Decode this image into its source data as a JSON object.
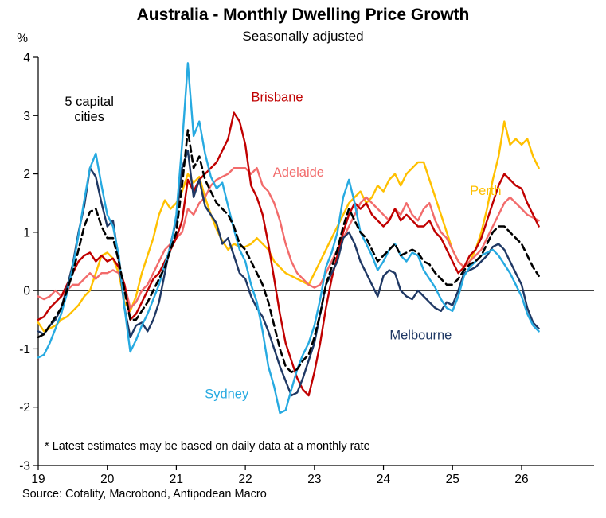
{
  "header": {
    "title": "Australia - Monthly Dwelling Price Growth",
    "subtitle": "Seasonally adjusted"
  },
  "footer": {
    "source": "Source: Cotality, Macrobond, Antipodean Macro"
  },
  "chart_data": {
    "type": "line",
    "title": "Australia - Monthly Dwelling Price Growth",
    "subtitle": "Seasonally adjusted",
    "unit_label": "%",
    "footnote": "* Latest estimates may be based on daily data at a monthly rate",
    "x_start_year": 2019,
    "x_interval": "monthly",
    "xlim": [
      2019,
      2027.05
    ],
    "ylim": [
      -3,
      4
    ],
    "yticks": [
      4,
      3,
      2,
      1,
      0,
      -1,
      -2,
      -3
    ],
    "xticks": [
      {
        "value": 2019,
        "label": "19"
      },
      {
        "value": 2020,
        "label": "20"
      },
      {
        "value": 2021,
        "label": "21"
      },
      {
        "value": 2022,
        "label": "22"
      },
      {
        "value": 2023,
        "label": "23"
      },
      {
        "value": 2024,
        "label": "24"
      },
      {
        "value": 2025,
        "label": "25"
      },
      {
        "value": 2026,
        "label": "26"
      }
    ],
    "grid": false,
    "zero_line": true,
    "legend_position": "inline-annotations",
    "series": [
      {
        "id": "perth",
        "name": "Perth",
        "color": "#FFC000",
        "dash": false,
        "width": 2.4,
        "values": [
          -0.55,
          -0.7,
          -0.65,
          -0.6,
          -0.5,
          -0.45,
          -0.35,
          -0.25,
          -0.1,
          0.0,
          0.3,
          0.6,
          0.65,
          0.55,
          0.3,
          -0.2,
          -0.35,
          -0.1,
          0.3,
          0.6,
          0.9,
          1.3,
          1.55,
          1.4,
          1.5,
          1.7,
          2.0,
          1.85,
          1.95,
          1.6,
          1.3,
          1.05,
          0.85,
          0.7,
          0.8,
          0.75,
          0.75,
          0.8,
          0.9,
          0.8,
          0.7,
          0.5,
          0.4,
          0.3,
          0.25,
          0.2,
          0.15,
          0.1,
          0.3,
          0.5,
          0.7,
          0.9,
          1.1,
          1.3,
          1.5,
          1.6,
          1.7,
          1.5,
          1.6,
          1.8,
          1.7,
          1.9,
          2.0,
          1.8,
          2.0,
          2.1,
          2.2,
          2.2,
          1.9,
          1.6,
          1.3,
          1.0,
          0.7,
          0.5,
          0.4,
          0.5,
          0.7,
          1.0,
          1.4,
          1.9,
          2.3,
          2.9,
          2.5,
          2.6,
          2.5,
          2.6,
          2.3,
          2.1
        ]
      },
      {
        "id": "adelaide",
        "name": "Adelaide",
        "color": "#F26B6B",
        "dash": false,
        "width": 2.4,
        "values": [
          -0.1,
          -0.15,
          -0.1,
          0.0,
          -0.1,
          0.0,
          0.1,
          0.1,
          0.2,
          0.3,
          0.2,
          0.3,
          0.3,
          0.35,
          0.3,
          0.1,
          -0.3,
          -0.2,
          0.0,
          0.1,
          0.3,
          0.5,
          0.7,
          0.8,
          0.9,
          1.0,
          1.4,
          1.3,
          1.5,
          1.6,
          1.8,
          1.9,
          1.95,
          2.0,
          2.1,
          2.1,
          2.1,
          2.0,
          2.1,
          1.8,
          1.7,
          1.5,
          1.2,
          0.8,
          0.5,
          0.3,
          0.2,
          0.1,
          0.05,
          0.1,
          0.3,
          0.5,
          0.7,
          0.9,
          1.1,
          1.3,
          1.5,
          1.6,
          1.5,
          1.4,
          1.3,
          1.2,
          1.4,
          1.3,
          1.5,
          1.3,
          1.2,
          1.4,
          1.5,
          1.2,
          1.0,
          0.9,
          0.7,
          0.5,
          0.4,
          0.5,
          0.6,
          0.7,
          0.9,
          1.1,
          1.3,
          1.5,
          1.6,
          1.5,
          1.4,
          1.3,
          1.25,
          1.2
        ]
      },
      {
        "id": "brisbane",
        "name": "Brisbane",
        "color": "#C00000",
        "dash": false,
        "width": 2.4,
        "values": [
          -0.5,
          -0.45,
          -0.3,
          -0.2,
          -0.1,
          0.1,
          0.3,
          0.5,
          0.6,
          0.65,
          0.5,
          0.6,
          0.5,
          0.55,
          0.4,
          0.1,
          -0.5,
          -0.4,
          -0.2,
          0.0,
          0.2,
          0.3,
          0.5,
          0.7,
          0.9,
          1.2,
          1.9,
          1.7,
          1.9,
          2.0,
          2.1,
          2.2,
          2.4,
          2.6,
          3.05,
          2.9,
          2.5,
          1.8,
          1.6,
          1.3,
          0.8,
          0.2,
          -0.4,
          -0.9,
          -1.2,
          -1.5,
          -1.7,
          -1.8,
          -1.4,
          -0.9,
          -0.3,
          0.2,
          0.6,
          1.0,
          1.3,
          1.5,
          1.4,
          1.5,
          1.3,
          1.2,
          1.1,
          1.2,
          1.4,
          1.2,
          1.3,
          1.2,
          1.1,
          1.1,
          1.2,
          1.0,
          0.9,
          0.7,
          0.5,
          0.3,
          0.4,
          0.6,
          0.7,
          0.9,
          1.2,
          1.5,
          1.8,
          2.0,
          1.9,
          1.8,
          1.75,
          1.5,
          1.3,
          1.1
        ]
      },
      {
        "id": "melbourne",
        "name": "Melbourne",
        "color": "#1F3864",
        "dash": false,
        "width": 2.4,
        "values": [
          -0.7,
          -0.75,
          -0.6,
          -0.5,
          -0.3,
          0.05,
          0.45,
          1.0,
          1.45,
          2.1,
          1.95,
          1.5,
          1.1,
          1.2,
          0.5,
          -0.3,
          -0.8,
          -0.6,
          -0.55,
          -0.7,
          -0.5,
          -0.2,
          0.3,
          0.8,
          1.2,
          2.1,
          2.4,
          1.6,
          1.9,
          1.45,
          1.3,
          1.15,
          0.8,
          0.9,
          0.6,
          0.3,
          0.2,
          -0.1,
          -0.3,
          -0.45,
          -0.7,
          -1.0,
          -1.3,
          -1.55,
          -1.8,
          -1.75,
          -1.5,
          -1.2,
          -0.9,
          -0.4,
          0.1,
          0.3,
          0.5,
          0.9,
          1.0,
          0.8,
          0.5,
          0.3,
          0.1,
          -0.1,
          0.25,
          0.35,
          0.3,
          0.0,
          -0.1,
          -0.15,
          0.0,
          -0.1,
          -0.2,
          -0.3,
          -0.35,
          -0.2,
          -0.25,
          0.0,
          0.3,
          0.35,
          0.4,
          0.5,
          0.6,
          0.75,
          0.8,
          0.7,
          0.5,
          0.3,
          0.1,
          -0.3,
          -0.55,
          -0.65
        ]
      },
      {
        "id": "sydney",
        "name": "Sydney",
        "color": "#27AAE1",
        "dash": false,
        "width": 2.4,
        "values": [
          -1.15,
          -1.1,
          -0.9,
          -0.65,
          -0.4,
          -0.05,
          0.4,
          0.95,
          1.55,
          2.1,
          2.35,
          1.8,
          1.3,
          1.1,
          0.6,
          -0.3,
          -1.05,
          -0.85,
          -0.6,
          -0.4,
          -0.15,
          0.1,
          0.45,
          0.75,
          1.3,
          2.5,
          3.9,
          2.65,
          2.9,
          2.35,
          1.95,
          1.75,
          1.85,
          1.45,
          1.05,
          0.7,
          0.5,
          0.1,
          -0.2,
          -0.7,
          -1.3,
          -1.65,
          -2.1,
          -2.05,
          -1.7,
          -1.35,
          -1.1,
          -0.9,
          -0.6,
          -0.15,
          0.4,
          0.65,
          1.0,
          1.6,
          1.9,
          1.5,
          1.0,
          0.8,
          0.6,
          0.35,
          0.5,
          0.7,
          0.8,
          0.6,
          0.5,
          0.65,
          0.6,
          0.35,
          0.2,
          0.05,
          -0.15,
          -0.3,
          -0.35,
          -0.1,
          0.25,
          0.4,
          0.5,
          0.6,
          0.65,
          0.7,
          0.6,
          0.45,
          0.3,
          0.1,
          -0.1,
          -0.4,
          -0.6,
          -0.7
        ]
      },
      {
        "id": "five-capital-cities",
        "name": "5 capital cities",
        "color": "#000000",
        "dash": true,
        "width": 2.6,
        "values": [
          -0.8,
          -0.75,
          -0.6,
          -0.45,
          -0.3,
          0.0,
          0.3,
          0.7,
          1.1,
          1.35,
          1.4,
          1.1,
          0.9,
          0.9,
          0.5,
          0.0,
          -0.5,
          -0.5,
          -0.35,
          -0.2,
          0.0,
          0.2,
          0.4,
          0.7,
          1.0,
          1.8,
          2.75,
          2.1,
          2.3,
          1.9,
          1.7,
          1.5,
          1.4,
          1.3,
          1.1,
          0.8,
          0.7,
          0.5,
          0.3,
          0.1,
          -0.2,
          -0.6,
          -1.0,
          -1.3,
          -1.4,
          -1.35,
          -1.2,
          -1.1,
          -0.8,
          -0.4,
          0.1,
          0.4,
          0.7,
          1.1,
          1.4,
          1.2,
          1.0,
          0.9,
          0.7,
          0.5,
          0.6,
          0.7,
          0.8,
          0.6,
          0.65,
          0.7,
          0.65,
          0.5,
          0.45,
          0.3,
          0.2,
          0.1,
          0.1,
          0.2,
          0.35,
          0.45,
          0.5,
          0.6,
          0.8,
          1.0,
          1.1,
          1.1,
          1.0,
          0.9,
          0.8,
          0.6,
          0.4,
          0.25
        ]
      }
    ],
    "annotations": [
      {
        "id": "five-capital-cities-label",
        "lines": [
          "5 capital",
          "cities"
        ],
        "x": 2019.74,
        "y": 3.17,
        "color": "#000000",
        "anchor": "middle"
      },
      {
        "id": "brisbane-label",
        "lines": [
          "Brisbane"
        ],
        "x": 2022.46,
        "y": 3.24,
        "color": "#C00000",
        "anchor": "middle"
      },
      {
        "id": "adelaide-label",
        "lines": [
          "Adelaide"
        ],
        "x": 2022.77,
        "y": 1.95,
        "color": "#F26B6B",
        "anchor": "middle"
      },
      {
        "id": "perth-label",
        "lines": [
          "Perth"
        ],
        "x": 2025.48,
        "y": 1.64,
        "color": "#FFC000",
        "anchor": "middle"
      },
      {
        "id": "melbourne-label",
        "lines": [
          "Melbourne"
        ],
        "x": 2024.54,
        "y": -0.84,
        "color": "#1F3864",
        "anchor": "middle"
      },
      {
        "id": "sydney-label",
        "lines": [
          "Sydney"
        ],
        "x": 2021.73,
        "y": -1.85,
        "color": "#27AAE1",
        "anchor": "middle"
      }
    ]
  }
}
